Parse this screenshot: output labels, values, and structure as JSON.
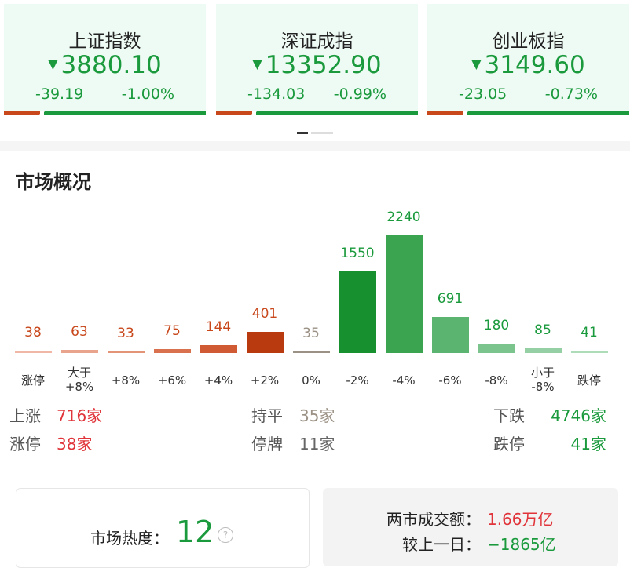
{
  "indices": [
    {
      "name": "上证指数",
      "value": "3880.10",
      "change": "-39.19",
      "pct": "-1.00%"
    },
    {
      "name": "深证成指",
      "value": "13352.90",
      "change": "-134.03",
      "pct": "-0.99%"
    },
    {
      "name": "创业板指",
      "value": "3149.60",
      "change": "-23.05",
      "pct": "-0.73%"
    }
  ],
  "section_title": "市场概况",
  "distribution": {
    "type": "bar",
    "categories": [
      "涨停",
      "大于\n+8%",
      "+8%",
      "+6%",
      "+4%",
      "+2%",
      "0%",
      "-2%",
      "-4%",
      "-6%",
      "-8%",
      "小于\n-8%",
      "跌停"
    ],
    "values": [
      38,
      63,
      33,
      75,
      144,
      401,
      35,
      1550,
      2240,
      691,
      180,
      85,
      41
    ],
    "colors": [
      "#f0b7a5",
      "#e8a48c",
      "#e39478",
      "#d9714f",
      "#cf5a33",
      "#b83a0e",
      "#9b9185",
      "#17902f",
      "#3aa451",
      "#5bb46f",
      "#7cc48e",
      "#95d0a4",
      "#aedbb9"
    ]
  },
  "summary": {
    "up": {
      "label": "上涨",
      "value": "716家"
    },
    "flat": {
      "label": "持平",
      "value": "35家"
    },
    "down": {
      "label": "下跌",
      "value": "4746家"
    },
    "limit_up": {
      "label": "涨停",
      "value": "38家"
    },
    "suspended": {
      "label": "停牌",
      "value": "11家"
    },
    "limit_down": {
      "label": "跌停",
      "value": "41家"
    }
  },
  "heat": {
    "label": "市场热度：",
    "value": "12"
  },
  "turnover": {
    "label": "两市成交额：",
    "value": "1.66万亿",
    "diff_label": "较上一日：",
    "diff_value": "−1865亿"
  }
}
